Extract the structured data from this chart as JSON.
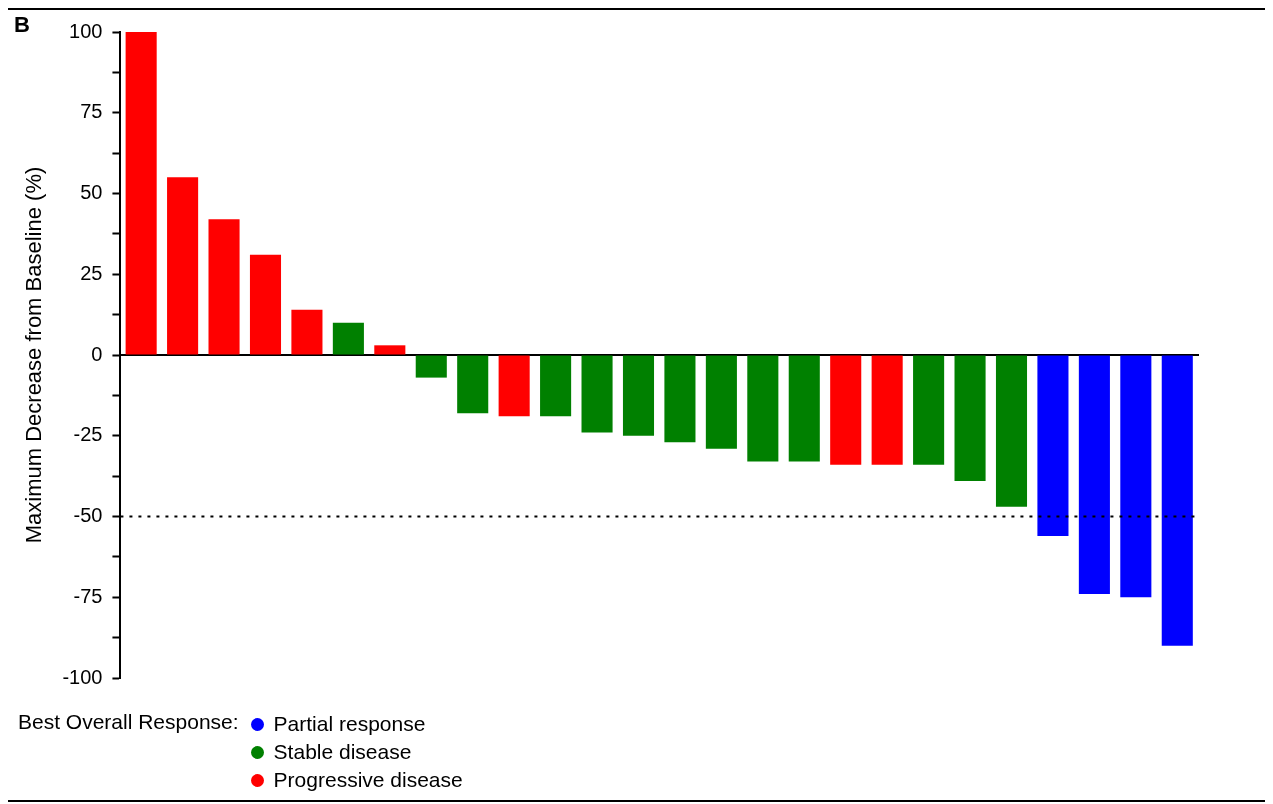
{
  "chart_data": {
    "type": "bar",
    "ylabel": "Maximum Decrease from Baseline (%)",
    "legend_title": "Best Overall Response:",
    "annotations": [
      "B"
    ],
    "categories": [
      null,
      null,
      null,
      null,
      null,
      null,
      null,
      null,
      null,
      null,
      null,
      null,
      null,
      null,
      null,
      null,
      null,
      null,
      null,
      null,
      null,
      null,
      null,
      null,
      null,
      null
    ],
    "series": [
      {
        "name": "Partial response",
        "color": "#0000ff",
        "values": [
          null,
          null,
          null,
          null,
          null,
          null,
          null,
          null,
          null,
          null,
          null,
          null,
          null,
          null,
          null,
          null,
          null,
          null,
          null,
          null,
          null,
          null,
          -56,
          -74,
          -75,
          -90
        ]
      },
      {
        "name": "Stable disease",
        "color": "#008000",
        "values": [
          null,
          null,
          null,
          null,
          null,
          10,
          null,
          -7,
          -18,
          null,
          -19,
          -24,
          -25,
          -27,
          -29,
          -33,
          -33,
          null,
          null,
          -34,
          -39,
          -47,
          null,
          null,
          null,
          null
        ]
      },
      {
        "name": "Progressive disease",
        "color": "#ff0000",
        "values": [
          100,
          55,
          42,
          31,
          14,
          null,
          3,
          null,
          null,
          -19,
          null,
          null,
          null,
          null,
          null,
          null,
          null,
          -34,
          -34,
          null,
          null,
          null,
          null,
          null,
          null,
          null
        ]
      }
    ],
    "ylim": [
      -100,
      100
    ],
    "yticks": [
      -100,
      {
        "value": -87.5,
        "label": null
      },
      -75,
      {
        "value": -62.5,
        "label": null
      },
      -50,
      {
        "value": -37.5,
        "label": null
      },
      -25,
      {
        "value": -12.5,
        "label": null
      },
      0,
      {
        "value": 12.5,
        "label": null
      },
      25,
      {
        "value": 37.5,
        "label": null
      },
      50,
      {
        "value": 62.5,
        "label": null
      },
      75,
      {
        "value": 87.5,
        "label": null
      },
      100
    ],
    "ref_lines": [
      {
        "axis": "y",
        "value": -50,
        "line_style": "dotted",
        "color": "#000000"
      }
    ],
    "grid": false,
    "legend": "bottom left",
    "tick_labels": "y"
  }
}
